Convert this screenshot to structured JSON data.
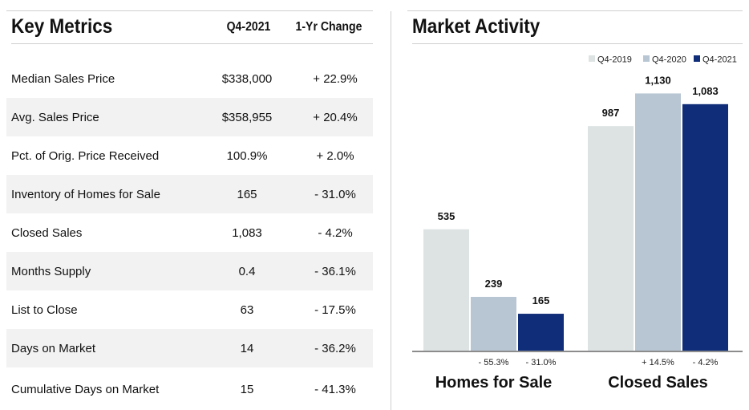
{
  "key_metrics": {
    "title": "Key Metrics",
    "col_period": "Q4-2021",
    "col_change": "1-Yr Change",
    "rows": [
      {
        "label": "Median Sales Price",
        "value": "$338,000",
        "change": "+ 22.9%"
      },
      {
        "label": "Avg. Sales Price",
        "value": "$358,955",
        "change": "+ 20.4%"
      },
      {
        "label": "Pct. of Orig. Price Received",
        "value": "100.9%",
        "change": "+ 2.0%"
      },
      {
        "label": "Inventory of Homes for Sale",
        "value": "165",
        "change": "- 31.0%"
      },
      {
        "label": "Closed Sales",
        "value": "1,083",
        "change": "- 4.2%"
      },
      {
        "label": "Months Supply",
        "value": "0.4",
        "change": "- 36.1%"
      },
      {
        "label": "List to Close",
        "value": "63",
        "change": "- 17.5%"
      },
      {
        "label": "Days on Market",
        "value": "14",
        "change": "- 36.2%"
      },
      {
        "label": "Cumulative Days on Market",
        "value": "15",
        "change": "- 41.3%"
      }
    ]
  },
  "market_activity": {
    "title": "Market Activity"
  },
  "chart_data": {
    "type": "bar",
    "title": "Market Activity",
    "categories": [
      "Homes for Sale",
      "Closed Sales"
    ],
    "series": [
      {
        "name": "Q4-2019",
        "values": [
          535,
          987
        ],
        "value_labels": [
          "535",
          "987"
        ],
        "color": "#dde3e3"
      },
      {
        "name": "Q4-2020",
        "values": [
          239,
          1130
        ],
        "value_labels": [
          "239",
          "1,130"
        ],
        "color": "#b8c6d3"
      },
      {
        "name": "Q4-2021",
        "values": [
          165,
          1083
        ],
        "value_labels": [
          "165",
          "1,083"
        ],
        "color": "#0f2d78"
      }
    ],
    "change_labels": [
      [
        "- 55.3%",
        "- 31.0%"
      ],
      [
        "+ 14.5%",
        "- 4.2%"
      ]
    ],
    "ylim": [
      0,
      1230
    ],
    "grid": false,
    "legend": "top-right"
  }
}
